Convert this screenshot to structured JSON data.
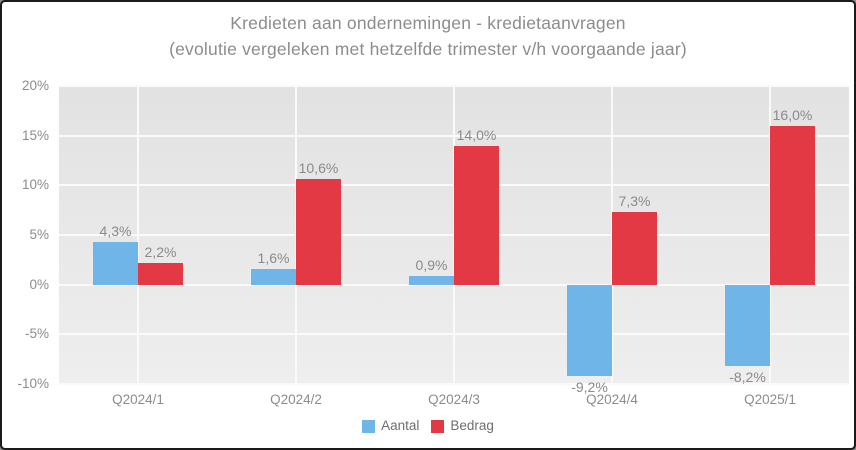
{
  "title": {
    "line1": "Kredieten aan ondernemingen - kredietaanvragen",
    "line2": "(evolutie vergeleken met hetzelfde trimester v/h voorgaande jaar)"
  },
  "chart_data": {
    "type": "bar",
    "title": "Kredieten aan ondernemingen - kredietaanvragen",
    "subtitle": "(evolutie vergeleken met hetzelfde trimester v/h voorgaande jaar)",
    "categories": [
      "Q2024/1",
      "Q2024/2",
      "Q2024/3",
      "Q2024/4",
      "Q2025/1"
    ],
    "series": [
      {
        "name": "Aantal",
        "color": "#6FB5E8",
        "values": [
          4.3,
          1.6,
          0.9,
          -9.2,
          -8.2
        ],
        "value_labels": [
          "4,3%",
          "1,6%",
          "0,9%",
          "-9,2%",
          "-8,2%"
        ]
      },
      {
        "name": "Bedrag",
        "color": "#E33944",
        "values": [
          2.2,
          10.6,
          14.0,
          7.3,
          16.0
        ],
        "value_labels": [
          "2,2%",
          "10,6%",
          "14,0%",
          "7,3%",
          "16,0%"
        ]
      }
    ],
    "y_axis": {
      "min": -10,
      "max": 20,
      "step": 5,
      "tick_labels": [
        "20%",
        "15%",
        "10%",
        "5%",
        "0%",
        "-5%",
        "-10%"
      ]
    },
    "grid": true,
    "legend_position": "bottom",
    "colors": {
      "plot_background_top": "#e2e2e2",
      "plot_background_bottom": "#eeeeee",
      "gridline": "#fafafa",
      "axis_text": "#8c8c8c",
      "title_text": "#8c8c8c",
      "legend_text": "#6e6e6e"
    }
  }
}
